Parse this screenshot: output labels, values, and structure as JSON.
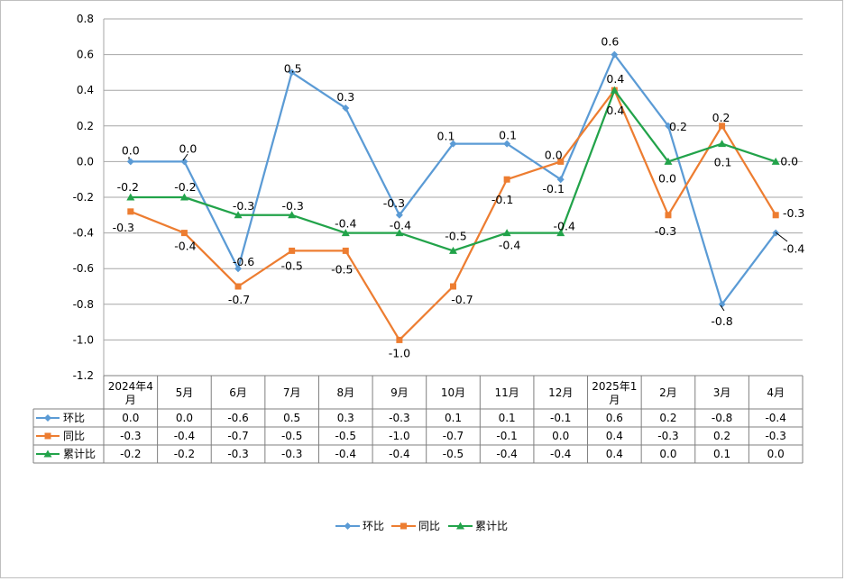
{
  "chart_data": {
    "type": "line",
    "categories": [
      "2024年4月",
      "5月",
      "6月",
      "7月",
      "8月",
      "9月",
      "10月",
      "11月",
      "12月",
      "2025年1月",
      "2月",
      "3月",
      "4月"
    ],
    "category_lines": [
      [
        "2024年4",
        "月"
      ],
      [
        "5月"
      ],
      [
        "6月"
      ],
      [
        "7月"
      ],
      [
        "8月"
      ],
      [
        "9月"
      ],
      [
        "10月"
      ],
      [
        "11月"
      ],
      [
        "12月"
      ],
      [
        "2025年1",
        "月"
      ],
      [
        "2月"
      ],
      [
        "3月"
      ],
      [
        "4月"
      ]
    ],
    "series": [
      {
        "name": "环比",
        "color": "#5b9bd5",
        "marker": "diamond",
        "values": [
          0.0,
          0.0,
          -0.6,
          0.5,
          0.3,
          -0.3,
          0.1,
          0.1,
          -0.1,
          0.6,
          0.2,
          -0.8,
          -0.4
        ],
        "labels": [
          "0.0",
          "0.0",
          "-0.6",
          "0.5",
          "0.3",
          "-0.3",
          "0.1",
          "0.1",
          "-0.1",
          "0.6",
          "0.2",
          "-0.8",
          "-0.4"
        ]
      },
      {
        "name": "同比",
        "color": "#ed7d31",
        "marker": "square",
        "values": [
          -0.28,
          -0.4,
          -0.7,
          -0.5,
          -0.5,
          -1.0,
          -0.7,
          -0.1,
          0.0,
          0.4,
          -0.3,
          0.2,
          -0.3
        ],
        "labels": [
          "-0.3",
          "-0.4",
          "-0.7",
          "-0.5",
          "-0.5",
          "-1.0",
          "-0.7",
          "-0.1",
          "0.0",
          "0.4",
          "-0.3",
          "0.2",
          "-0.3"
        ]
      },
      {
        "name": "累计比",
        "color": "#22a34a",
        "marker": "triangle",
        "values": [
          -0.2,
          -0.2,
          -0.3,
          -0.3,
          -0.4,
          -0.4,
          -0.5,
          -0.4,
          -0.4,
          0.4,
          0.0,
          0.1,
          0.0
        ],
        "labels": [
          "-0.2",
          "-0.2",
          "-0.3",
          "-0.3",
          "-0.4",
          "-0.4",
          "-0.5",
          "-0.4",
          "-0.4",
          "0.4",
          "0.0",
          "0.1",
          "0.0"
        ]
      }
    ],
    "y_ticks": [
      "0.8",
      "0.6",
      "0.4",
      "0.2",
      "0.0",
      "-0.2",
      "-0.4",
      "-0.6",
      "-0.8",
      "-1.0",
      "-1.2"
    ],
    "ylim": [
      -1.2,
      0.8
    ],
    "grid": true,
    "legend": "bottom-center",
    "data_table": true
  }
}
